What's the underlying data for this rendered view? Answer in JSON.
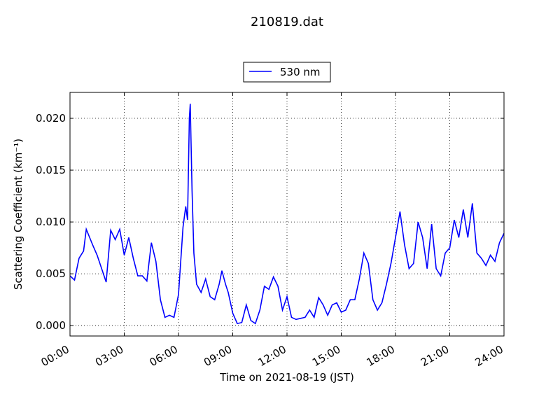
{
  "chart_data": {
    "type": "line",
    "title": "210819.dat",
    "xlabel": "Time on 2021-08-19 (JST)",
    "ylabel": "Scattering Coefficient (km⁻¹)",
    "x": [
      0,
      0.25,
      0.5,
      0.75,
      0.9,
      1.25,
      1.5,
      1.75,
      2.0,
      2.25,
      2.5,
      2.75,
      3.0,
      3.25,
      3.5,
      3.75,
      4.0,
      4.25,
      4.5,
      4.75,
      5.0,
      5.25,
      5.5,
      5.75,
      6.0,
      6.25,
      6.4,
      6.5,
      6.6,
      6.65,
      6.75,
      6.85,
      7.0,
      7.25,
      7.5,
      7.75,
      8.0,
      8.25,
      8.4,
      8.6,
      8.75,
      9.0,
      9.25,
      9.5,
      9.75,
      10.0,
      10.25,
      10.5,
      10.75,
      11.0,
      11.25,
      11.5,
      11.75,
      12.0,
      12.25,
      12.5,
      12.75,
      13.0,
      13.25,
      13.5,
      13.75,
      14.0,
      14.25,
      14.5,
      14.75,
      15.0,
      15.25,
      15.5,
      15.75,
      16.0,
      16.25,
      16.5,
      16.75,
      17.0,
      17.25,
      17.5,
      17.75,
      18.0,
      18.25,
      18.5,
      18.75,
      19.0,
      19.25,
      19.5,
      19.75,
      20.0,
      20.25,
      20.5,
      20.75,
      21.0,
      21.25,
      21.5,
      21.75,
      22.0,
      22.25,
      22.5,
      22.75,
      23.0,
      23.25,
      23.5,
      23.75,
      24.0
    ],
    "series": [
      {
        "name": "530 nm",
        "color": "#0000ff",
        "values": [
          0.0048,
          0.0044,
          0.0065,
          0.0072,
          0.0093,
          0.0078,
          0.0068,
          0.0055,
          0.0042,
          0.0092,
          0.0083,
          0.0093,
          0.0068,
          0.0085,
          0.0065,
          0.0048,
          0.0048,
          0.0043,
          0.008,
          0.0062,
          0.0025,
          0.0008,
          0.001,
          0.0008,
          0.003,
          0.0095,
          0.0115,
          0.0102,
          0.02,
          0.0214,
          0.013,
          0.007,
          0.004,
          0.0032,
          0.0045,
          0.0028,
          0.0025,
          0.004,
          0.0053,
          0.004,
          0.0032,
          0.0012,
          0.0002,
          0.0003,
          0.002,
          0.0005,
          0.0002,
          0.0015,
          0.0038,
          0.0035,
          0.0047,
          0.0038,
          0.0015,
          0.0028,
          0.0008,
          0.0006,
          0.0007,
          0.0008,
          0.0015,
          0.0008,
          0.0027,
          0.002,
          0.001,
          0.002,
          0.0022,
          0.0013,
          0.0015,
          0.0025,
          0.0025,
          0.0045,
          0.007,
          0.006,
          0.0025,
          0.0015,
          0.0022,
          0.004,
          0.006,
          0.0085,
          0.011,
          0.0078,
          0.0055,
          0.006,
          0.01,
          0.0085,
          0.0055,
          0.0098,
          0.0055,
          0.0048,
          0.007,
          0.0075,
          0.0102,
          0.0085,
          0.0112,
          0.0085,
          0.0118,
          0.007,
          0.0065,
          0.0058,
          0.0068,
          0.0062,
          0.008,
          0.0089
        ]
      }
    ],
    "xlim": [
      0,
      24
    ],
    "xticks": [
      {
        "value": 0,
        "label": "00:00"
      },
      {
        "value": 3,
        "label": "03:00"
      },
      {
        "value": 6,
        "label": "06:00"
      },
      {
        "value": 9,
        "label": "09:00"
      },
      {
        "value": 12,
        "label": "12:00"
      },
      {
        "value": 15,
        "label": "15:00"
      },
      {
        "value": 18,
        "label": "18:00"
      },
      {
        "value": 21,
        "label": "21:00"
      },
      {
        "value": 24,
        "label": "24:00"
      }
    ],
    "ylim": [
      -0.001,
      0.0225
    ],
    "yticks": [
      {
        "value": 0,
        "label": "0.000"
      },
      {
        "value": 0.005,
        "label": "0.005"
      },
      {
        "value": 0.01,
        "label": "0.010"
      },
      {
        "value": 0.015,
        "label": "0.015"
      },
      {
        "value": 0.02,
        "label": "0.020"
      }
    ],
    "grid": true,
    "legend": "upper center"
  }
}
